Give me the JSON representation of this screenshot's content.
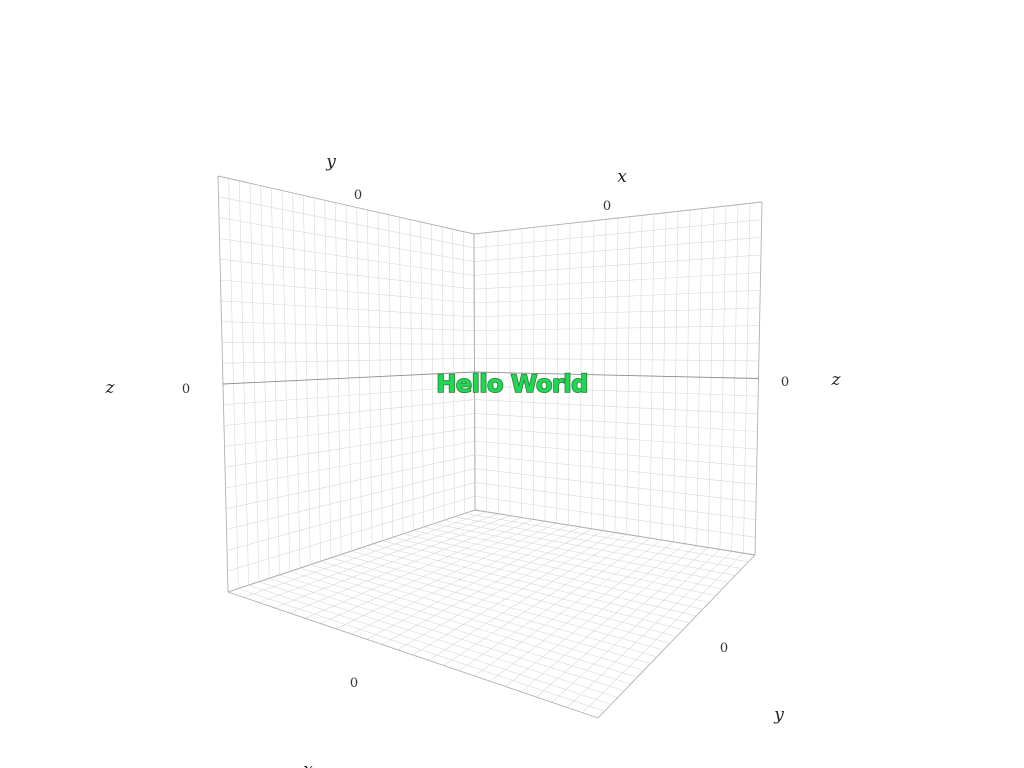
{
  "scene": {
    "text": "Hello World",
    "text_color": "#1fd655",
    "text_outline": "#2e7d32"
  },
  "axes": {
    "left_wall": {
      "horizontal_title": "y",
      "vertical_title": "z",
      "horizontal_tick": "0",
      "vertical_tick": "0"
    },
    "right_wall": {
      "horizontal_title": "x",
      "vertical_title": "z",
      "horizontal_tick": "0",
      "vertical_tick": "0"
    },
    "floor": {
      "front_title": "x",
      "side_title": "y",
      "front_tick": "0",
      "side_tick": "0"
    }
  },
  "colors": {
    "background": "#ffffff",
    "grid_fine": "#d9d9d9",
    "grid_major": "#8e8e8e"
  }
}
